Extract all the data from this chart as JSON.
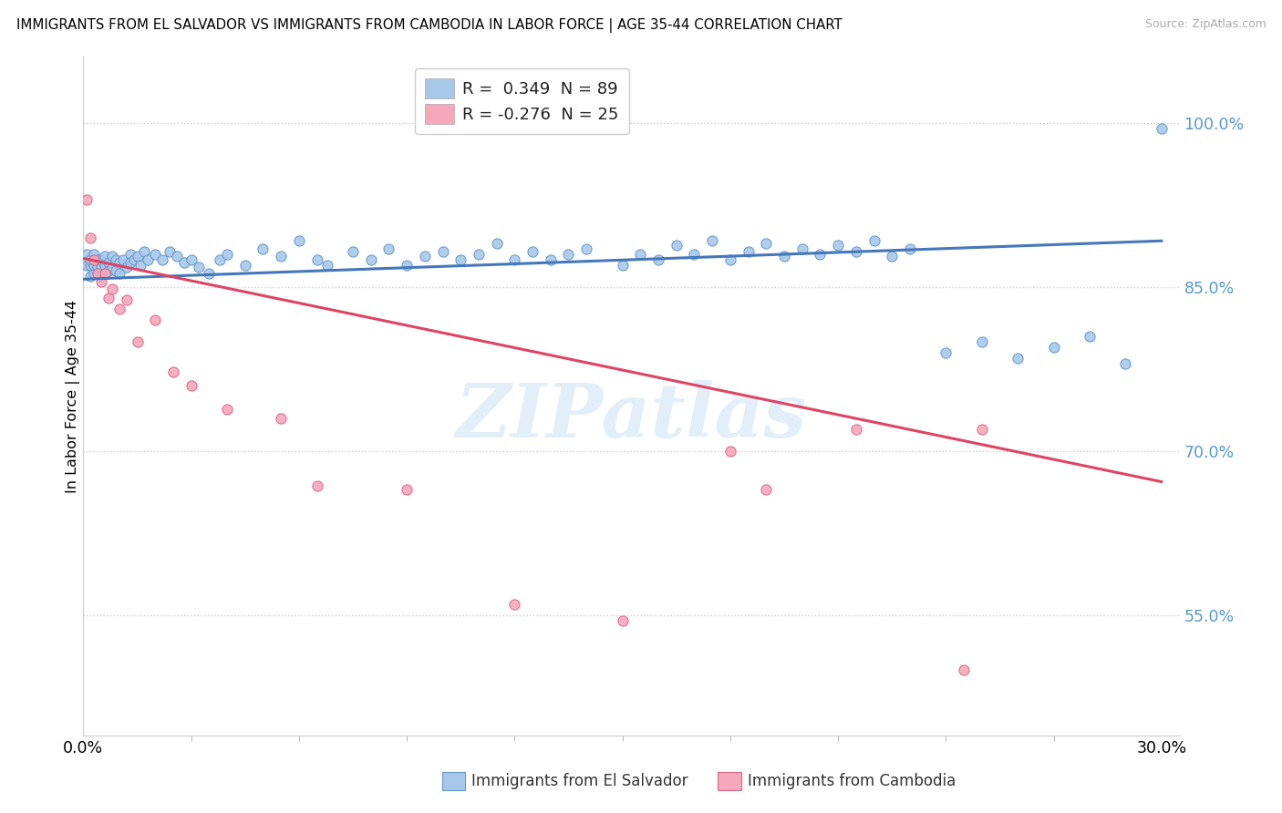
{
  "title": "IMMIGRANTS FROM EL SALVADOR VS IMMIGRANTS FROM CAMBODIA IN LABOR FORCE | AGE 35-44 CORRELATION CHART",
  "source": "Source: ZipAtlas.com",
  "ylabel": "In Labor Force | Age 35-44",
  "y_ticks": [
    0.55,
    0.7,
    0.85,
    1.0
  ],
  "y_tick_labels": [
    "55.0%",
    "70.0%",
    "85.0%",
    "100.0%"
  ],
  "x_range": [
    0.0,
    0.305
  ],
  "y_range": [
    0.44,
    1.06
  ],
  "legend_r1": "R =  0.349  N = 89",
  "legend_r2": "R = -0.276  N = 25",
  "series1_color": "#a8c8ea",
  "series1_edge": "#6699cc",
  "series2_color": "#f5a8bc",
  "series2_edge": "#dd6688",
  "line1_color": "#4477bb",
  "line2_color": "#dd4466",
  "watermark_text": "ZIPatlas",
  "bottom_label1": "Immigrants from El Salvador",
  "bottom_label2": "Immigrants from Cambodia",
  "series1_x": [
    0.001,
    0.001,
    0.002,
    0.002,
    0.002,
    0.003,
    0.003,
    0.003,
    0.003,
    0.004,
    0.004,
    0.004,
    0.005,
    0.005,
    0.005,
    0.006,
    0.006,
    0.006,
    0.007,
    0.007,
    0.008,
    0.008,
    0.009,
    0.009,
    0.01,
    0.01,
    0.011,
    0.012,
    0.013,
    0.013,
    0.014,
    0.015,
    0.016,
    0.017,
    0.018,
    0.02,
    0.022,
    0.024,
    0.026,
    0.028,
    0.03,
    0.032,
    0.035,
    0.038,
    0.04,
    0.045,
    0.05,
    0.055,
    0.06,
    0.065,
    0.068,
    0.075,
    0.08,
    0.085,
    0.09,
    0.095,
    0.1,
    0.105,
    0.11,
    0.115,
    0.12,
    0.125,
    0.13,
    0.135,
    0.14,
    0.15,
    0.155,
    0.16,
    0.165,
    0.17,
    0.175,
    0.18,
    0.185,
    0.19,
    0.195,
    0.2,
    0.205,
    0.21,
    0.215,
    0.22,
    0.225,
    0.23,
    0.24,
    0.25,
    0.26,
    0.27,
    0.28,
    0.29,
    0.3
  ],
  "series1_y": [
    0.88,
    0.87,
    0.86,
    0.87,
    0.875,
    0.862,
    0.87,
    0.875,
    0.88,
    0.862,
    0.868,
    0.875,
    0.86,
    0.868,
    0.875,
    0.862,
    0.87,
    0.878,
    0.865,
    0.872,
    0.868,
    0.878,
    0.865,
    0.875,
    0.862,
    0.872,
    0.875,
    0.868,
    0.88,
    0.872,
    0.875,
    0.878,
    0.87,
    0.882,
    0.875,
    0.88,
    0.875,
    0.882,
    0.878,
    0.872,
    0.875,
    0.868,
    0.862,
    0.875,
    0.88,
    0.87,
    0.885,
    0.878,
    0.892,
    0.875,
    0.87,
    0.882,
    0.875,
    0.885,
    0.87,
    0.878,
    0.882,
    0.875,
    0.88,
    0.89,
    0.875,
    0.882,
    0.875,
    0.88,
    0.885,
    0.87,
    0.88,
    0.875,
    0.888,
    0.88,
    0.892,
    0.875,
    0.882,
    0.89,
    0.878,
    0.885,
    0.88,
    0.888,
    0.882,
    0.892,
    0.878,
    0.885,
    0.79,
    0.8,
    0.785,
    0.795,
    0.805,
    0.78,
    0.995
  ],
  "series2_x": [
    0.001,
    0.002,
    0.003,
    0.004,
    0.005,
    0.006,
    0.007,
    0.008,
    0.01,
    0.012,
    0.015,
    0.02,
    0.025,
    0.03,
    0.04,
    0.055,
    0.065,
    0.09,
    0.12,
    0.15,
    0.19,
    0.25,
    0.245,
    0.215,
    0.18
  ],
  "series2_y": [
    0.93,
    0.895,
    0.875,
    0.862,
    0.855,
    0.862,
    0.84,
    0.848,
    0.83,
    0.838,
    0.8,
    0.82,
    0.772,
    0.76,
    0.738,
    0.73,
    0.668,
    0.665,
    0.56,
    0.545,
    0.665,
    0.72,
    0.5,
    0.72,
    0.7
  ],
  "line1_x": [
    0.0,
    0.3
  ],
  "line1_y": [
    0.857,
    0.892
  ],
  "line2_x": [
    0.0,
    0.3
  ],
  "line2_y": [
    0.876,
    0.672
  ]
}
